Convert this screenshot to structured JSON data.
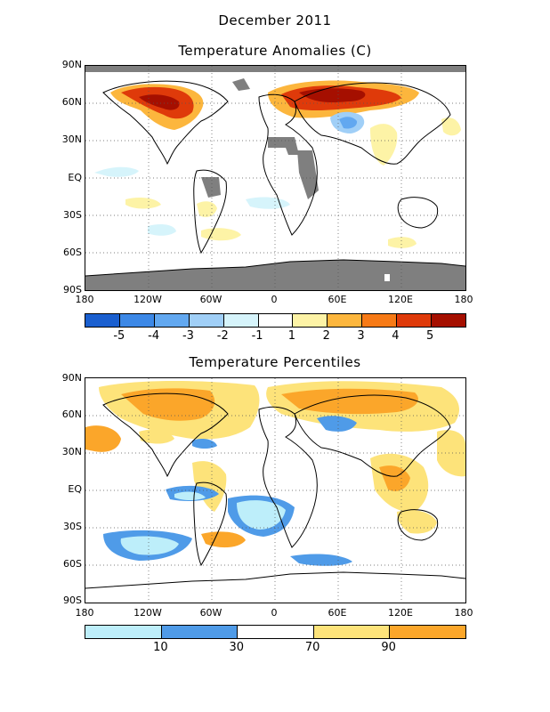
{
  "header": {
    "date_title": "December 2011"
  },
  "panels": [
    {
      "title": "Temperature Anomalies (C)",
      "lat_labels": [
        "90N",
        "60N",
        "30N",
        "EQ",
        "30S",
        "60S",
        "90S"
      ],
      "lon_labels": [
        "180",
        "120W",
        "60W",
        "0",
        "60E",
        "120E",
        "180"
      ],
      "colorbar": {
        "colors": [
          "#1a5fcf",
          "#3c88e6",
          "#62a8f0",
          "#a0cff7",
          "#d6f4fb",
          "#ffffff",
          "#fdf3a6",
          "#fcb63d",
          "#f77a16",
          "#df3a0a",
          "#a50f00"
        ],
        "labels": [
          "-5",
          "-4",
          "-3",
          "-2",
          "-1",
          "1",
          "2",
          "3",
          "4",
          "5"
        ]
      }
    },
    {
      "title": "Temperature Percentiles",
      "lat_labels": [
        "90N",
        "60N",
        "30N",
        "EQ",
        "30S",
        "60S",
        "90S"
      ],
      "lon_labels": [
        "180",
        "120W",
        "60W",
        "0",
        "60E",
        "120E",
        "180"
      ],
      "colorbar": {
        "colors": [
          "#bdeefa",
          "#4f9be8",
          "#ffffff",
          "#fde37a",
          "#fba62a"
        ],
        "labels": [
          "10",
          "30",
          "70",
          "90"
        ]
      }
    }
  ]
}
